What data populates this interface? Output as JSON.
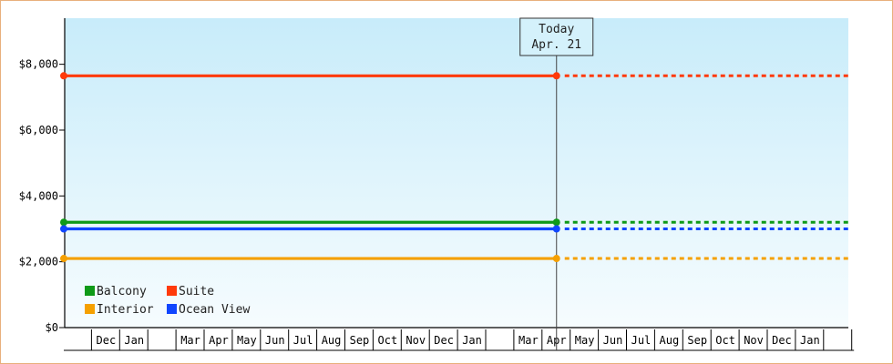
{
  "chart_data": {
    "type": "line",
    "y_axis": {
      "min": 0,
      "max": 9400,
      "ticks": [
        {
          "value": 0,
          "label": "$0"
        },
        {
          "value": 2000,
          "label": "$2,000"
        },
        {
          "value": 4000,
          "label": "$4,000"
        },
        {
          "value": 6000,
          "label": "$6,000"
        },
        {
          "value": 8000,
          "label": "$8,000"
        }
      ]
    },
    "x_axis": {
      "months": [
        "",
        "Dec",
        "Jan",
        "",
        "Mar",
        "Apr",
        "May",
        "Jun",
        "Jul",
        "Aug",
        "Sep",
        "Oct",
        "Nov",
        "Dec",
        "Jan",
        "",
        "Mar",
        "Apr",
        "May",
        "Jun",
        "Jul",
        "Aug",
        "Sep",
        "Oct",
        "Nov",
        "Dec",
        "Jan",
        ""
      ]
    },
    "x_start_index": 0,
    "today_index": 17.5,
    "today_label": [
      "Today",
      "Apr. 21"
    ],
    "series": [
      {
        "name": "Suite",
        "color": "#ff3a0a",
        "value": 7650
      },
      {
        "name": "Balcony",
        "color": "#0f9a18",
        "value": 3200
      },
      {
        "name": "Ocean View",
        "color": "#1046ff",
        "value": 3000
      },
      {
        "name": "Interior",
        "color": "#f5a000",
        "value": 2100
      }
    ],
    "legend": {
      "placement": "bottom-left",
      "order": [
        "Balcony",
        "Suite",
        "Interior",
        "Ocean View"
      ]
    },
    "colors": {
      "background_top": "#c8ecfa",
      "background_bottom": "#f6fcfe",
      "frame_border": "#e8b07c",
      "axis": "#000000"
    }
  }
}
